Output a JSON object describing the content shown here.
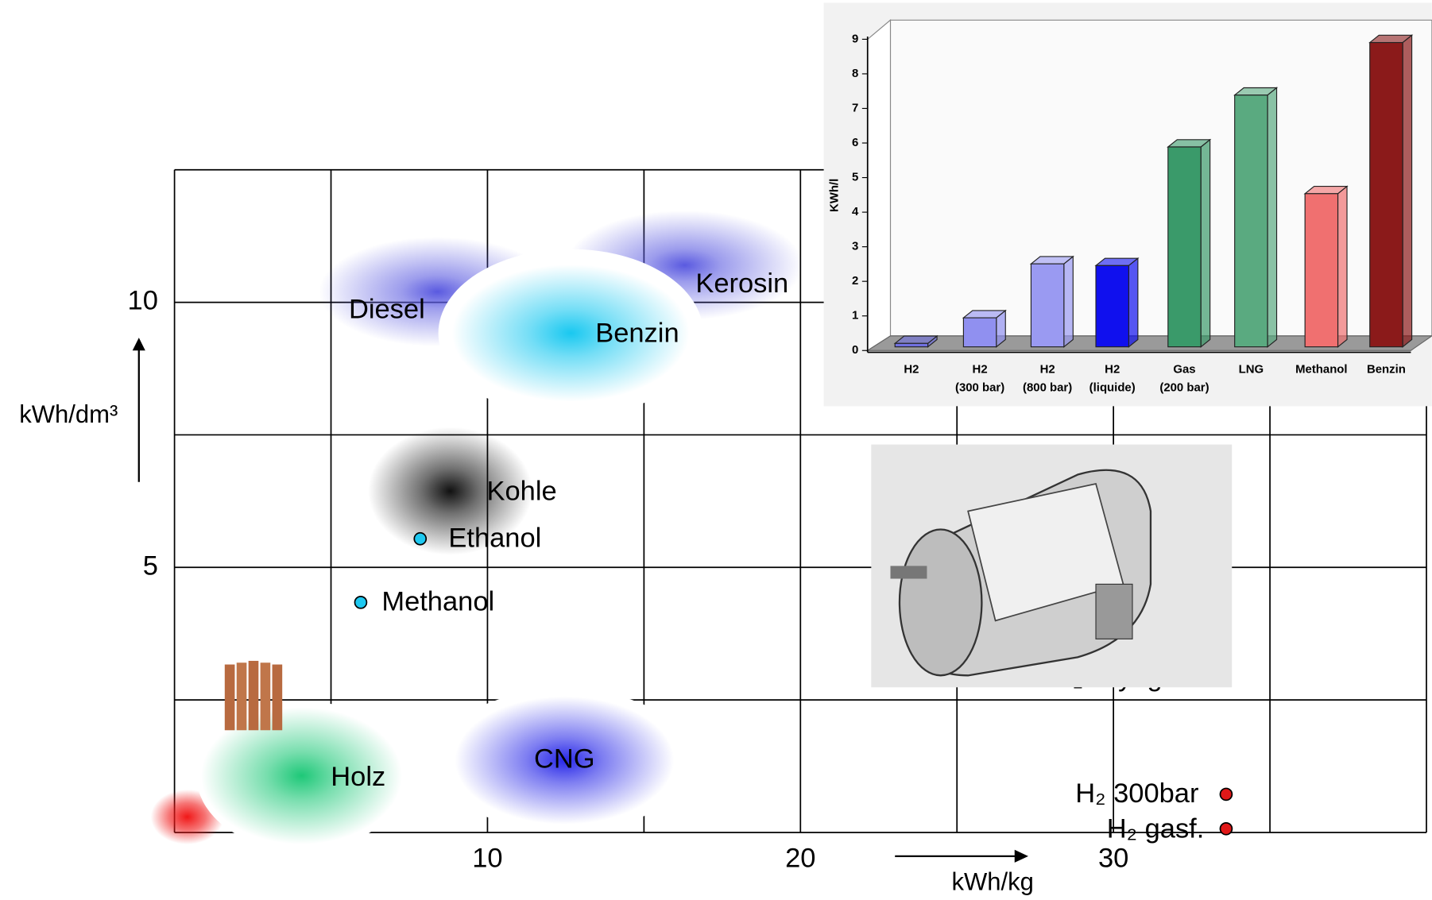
{
  "chart_data": [
    {
      "type": "scatter",
      "xlabel": "kWh/kg",
      "ylabel": "kWh/dm³",
      "xlim": [
        0,
        40
      ],
      "ylim": [
        0,
        12.5
      ],
      "xticks": [
        10,
        20,
        30
      ],
      "yticks": [
        5,
        10
      ],
      "xgrid": [
        0,
        5,
        10,
        15,
        20,
        25,
        30,
        35,
        40
      ],
      "ygrid": [
        0,
        2.5,
        5,
        7.5,
        10,
        12.5
      ],
      "points": [
        {
          "name": "Diesel",
          "x": 8.4,
          "y": 10.2,
          "style": "halo",
          "color": "#5a5ae0"
        },
        {
          "name": "Kerosin",
          "x": 16.3,
          "y": 10.7,
          "style": "halo",
          "color": "#5a5ae0"
        },
        {
          "name": "Benzin",
          "x": 12.66,
          "y": 9.42,
          "style": "blob",
          "color": "#19c8f0"
        },
        {
          "name": "Kohle",
          "x": 8.81,
          "y": 6.44,
          "style": "blob",
          "color": "#111111"
        },
        {
          "name": "Ethanol",
          "x": 7.85,
          "y": 5.54,
          "style": "point",
          "color": "#1ec8f0"
        },
        {
          "name": "Methanol",
          "x": 5.95,
          "y": 4.34,
          "style": "point",
          "color": "#1ec8f0"
        },
        {
          "name": "Holz",
          "x": 4.06,
          "y": 1.07,
          "style": "blob",
          "color": "#1ec878"
        },
        {
          "name": "CNG",
          "x": 12.46,
          "y": 1.36,
          "style": "blob",
          "color": "#2828e8"
        },
        {
          "name": "H₂ Kryogen",
          "x": 30.3,
          "y": 2.9,
          "style": "label",
          "color": "#000000"
        },
        {
          "name": "H₂ 300bar",
          "x": 33.6,
          "y": 0.72,
          "style": "point",
          "color": "#e01818"
        },
        {
          "name": "H₂ gasf.",
          "x": 33.6,
          "y": 0.07,
          "style": "point",
          "color": "#e01818"
        }
      ]
    },
    {
      "type": "bar",
      "ylabel": "KWh/l",
      "ylim": [
        0,
        9
      ],
      "yticks": [
        0,
        1,
        2,
        3,
        4,
        5,
        6,
        7,
        8,
        9
      ],
      "categories": [
        [
          "H2"
        ],
        [
          "H2",
          "(300 bar)"
        ],
        [
          "H2",
          "(800 bar)"
        ],
        [
          "H2",
          "(liquide)"
        ],
        [
          "Gas",
          "(200 bar)"
        ],
        [
          "LNG"
        ],
        [
          "Methanol"
        ],
        [
          "Benzin"
        ]
      ],
      "values": [
        0.1,
        0.84,
        2.4,
        2.35,
        5.78,
        7.28,
        4.43,
        8.8
      ],
      "colors": [
        "#7070e0",
        "#9090f0",
        "#9a9af2",
        "#1010ee",
        "#3a9a6a",
        "#5aaa80",
        "#f07070",
        "#8b1a1a"
      ]
    }
  ]
}
